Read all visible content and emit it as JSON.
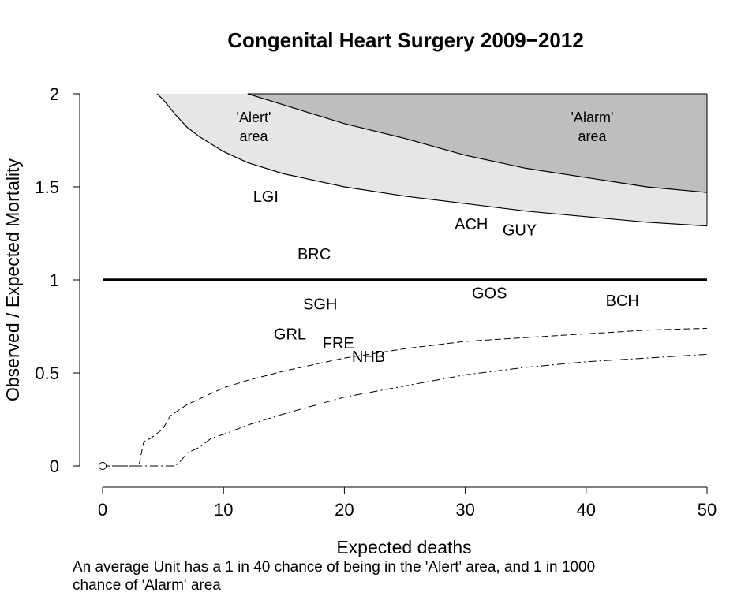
{
  "chart_data": {
    "type": "scatter",
    "title": "Congenital Heart Surgery 2009−2012",
    "xlabel": "Expected deaths",
    "ylabel": "Observed / Expected Mortality",
    "xlim": [
      0,
      50
    ],
    "ylim": [
      0,
      2
    ],
    "x_ticks": [
      "0",
      "10",
      "20",
      "30",
      "40",
      "50"
    ],
    "y_ticks": [
      "0",
      "0.5",
      "1",
      "1.5",
      "2"
    ],
    "grid": false,
    "reference_line_y": 1,
    "points": [
      {
        "label": "LGI",
        "x": 13.5,
        "y": 1.45
      },
      {
        "label": "BRC",
        "x": 17.5,
        "y": 1.14
      },
      {
        "label": "ACH",
        "x": 30.5,
        "y": 1.3
      },
      {
        "label": "GUY",
        "x": 34.5,
        "y": 1.27
      },
      {
        "label": "GOS",
        "x": 32.0,
        "y": 0.93
      },
      {
        "label": "BCH",
        "x": 43.0,
        "y": 0.89
      },
      {
        "label": "SGH",
        "x": 18.0,
        "y": 0.87
      },
      {
        "label": "GRL",
        "x": 15.5,
        "y": 0.71
      },
      {
        "label": "FRE",
        "x": 19.5,
        "y": 0.66
      },
      {
        "label": "NHB",
        "x": 22.0,
        "y": 0.59
      }
    ],
    "regions": [
      {
        "label_line1": "'Alert'",
        "label_line2": "area",
        "x": 12.5,
        "y": 1.83,
        "fill": "#e6e6e6"
      },
      {
        "label_line1": "'Alarm'",
        "label_line2": "area",
        "x": 40.5,
        "y": 1.83,
        "fill": "#bebebe"
      }
    ],
    "alert_upper_limit": [
      [
        4.5,
        2.0
      ],
      [
        5,
        1.97
      ],
      [
        6,
        1.89
      ],
      [
        7,
        1.82
      ],
      [
        8,
        1.77
      ],
      [
        10,
        1.69
      ],
      [
        12,
        1.63
      ],
      [
        15,
        1.57
      ],
      [
        20,
        1.5
      ],
      [
        25,
        1.45
      ],
      [
        30,
        1.41
      ],
      [
        35,
        1.37
      ],
      [
        40,
        1.34
      ],
      [
        45,
        1.31
      ],
      [
        50,
        1.29
      ]
    ],
    "alarm_upper_limit": [
      [
        12,
        2.0
      ],
      [
        13,
        1.98
      ],
      [
        15,
        1.94
      ],
      [
        20,
        1.84
      ],
      [
        25,
        1.76
      ],
      [
        30,
        1.67
      ],
      [
        35,
        1.6
      ],
      [
        40,
        1.55
      ],
      [
        45,
        1.5
      ],
      [
        50,
        1.47
      ]
    ],
    "alert_lower_limit": [
      [
        0,
        0
      ],
      [
        3,
        0
      ],
      [
        3.4,
        0.13
      ],
      [
        4,
        0.15
      ],
      [
        5,
        0.2
      ],
      [
        5.6,
        0.27
      ],
      [
        7,
        0.33
      ],
      [
        8,
        0.36
      ],
      [
        10,
        0.42
      ],
      [
        12,
        0.46
      ],
      [
        15,
        0.51
      ],
      [
        20,
        0.58
      ],
      [
        25,
        0.63
      ],
      [
        30,
        0.67
      ],
      [
        35,
        0.69
      ],
      [
        40,
        0.71
      ],
      [
        45,
        0.73
      ],
      [
        50,
        0.74
      ]
    ],
    "alarm_lower_limit": [
      [
        0,
        0
      ],
      [
        6,
        0
      ],
      [
        6.5,
        0.03
      ],
      [
        7,
        0.07
      ],
      [
        8,
        0.1
      ],
      [
        9,
        0.15
      ],
      [
        10,
        0.17
      ],
      [
        12,
        0.22
      ],
      [
        15,
        0.28
      ],
      [
        20,
        0.37
      ],
      [
        25,
        0.43
      ],
      [
        30,
        0.49
      ],
      [
        35,
        0.53
      ],
      [
        40,
        0.56
      ],
      [
        45,
        0.58
      ],
      [
        50,
        0.6
      ]
    ],
    "origin_point": {
      "x": 0,
      "y": 0
    },
    "colors": {
      "alert_area": "#e6e6e6",
      "alarm_area": "#bebebe",
      "line": "#000000"
    }
  },
  "caption_line1": "An average Unit has a 1 in 40 chance of being in the 'Alert' area, and 1 in 1000",
  "caption_line2": "chance of 'Alarm' area"
}
